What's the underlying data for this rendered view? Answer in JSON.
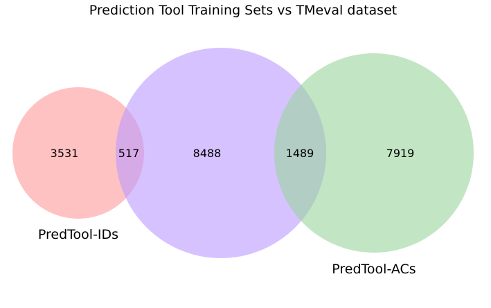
{
  "title": "Prediction Tool Training Sets vs TMeval dataset",
  "sets": [
    {
      "key": "ids",
      "label": "PredTool-IDs",
      "color": "#ff9999"
    },
    {
      "key": "tmeval",
      "label": "",
      "color": "#bb99ff"
    },
    {
      "key": "acs",
      "label": "PredTool-ACs",
      "color": "#99d39c"
    }
  ],
  "regions": {
    "ids_only": "3531",
    "ids_and_tmeval": "517",
    "tmeval_only": "8488",
    "tmeval_and_acs": "1489",
    "acs_only": "7919"
  }
}
